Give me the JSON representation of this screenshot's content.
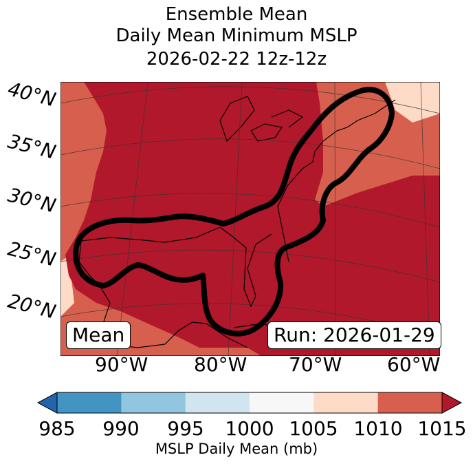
{
  "title": {
    "line1": "Ensemble Mean",
    "line2": "Daily Mean Minimum MSLP",
    "line3": "2026-02-22 12z-12z"
  },
  "map": {
    "lat_labels": [
      "40°N",
      "35°N",
      "30°N",
      "25°N",
      "20°N"
    ],
    "lon_labels": [
      "90°W",
      "80°W",
      "70°W",
      "60°W"
    ],
    "mean_box": "Mean",
    "run_box": "Run: 2026-01-29",
    "colors": {
      "1010_1015": "#b2182b",
      "1005_1010": "#d6604d",
      "1000_1005": "#fddbc7",
      "contour": "#000000",
      "coast": "#000000"
    }
  },
  "colorbar": {
    "ticks": [
      "985",
      "990",
      "995",
      "1000",
      "1005",
      "1010",
      "1015"
    ],
    "colors": [
      "#2166ac",
      "#4393c3",
      "#92c5de",
      "#d1e5f0",
      "#f7f7f7",
      "#fddbc7",
      "#d6604d",
      "#b2182b"
    ],
    "label": "MSLP Daily Mean (mb)"
  }
}
